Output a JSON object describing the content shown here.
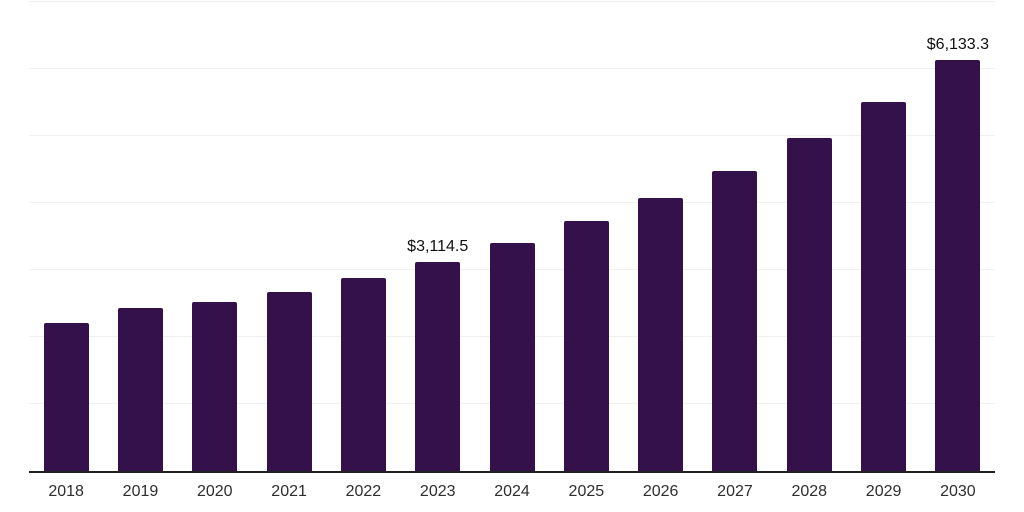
{
  "chart_data": {
    "type": "bar",
    "title": "",
    "xlabel": "",
    "ylabel": "",
    "categories": [
      "2018",
      "2019",
      "2020",
      "2021",
      "2022",
      "2023",
      "2024",
      "2025",
      "2026",
      "2027",
      "2028",
      "2029",
      "2030"
    ],
    "values": [
      2205,
      2430,
      2520,
      2670,
      2880,
      3114.5,
      3400,
      3730,
      4070,
      4475,
      4970,
      5505,
      6133.3
    ],
    "labeled_points": {
      "2023": "$3,114.5",
      "2030": "$6,133.3"
    },
    "ylim": [
      0,
      7000
    ],
    "gridline_step": 1000,
    "grid": "horizontal",
    "legend": "none",
    "y_tick_labels_visible": false,
    "colors": {
      "bar": "#35114C",
      "gridline": "#f0f0f0",
      "axis_line": "#212121",
      "data_label_text": "#111111",
      "x_tick_text": "#2e2e2e",
      "background": "#ffffff"
    }
  }
}
